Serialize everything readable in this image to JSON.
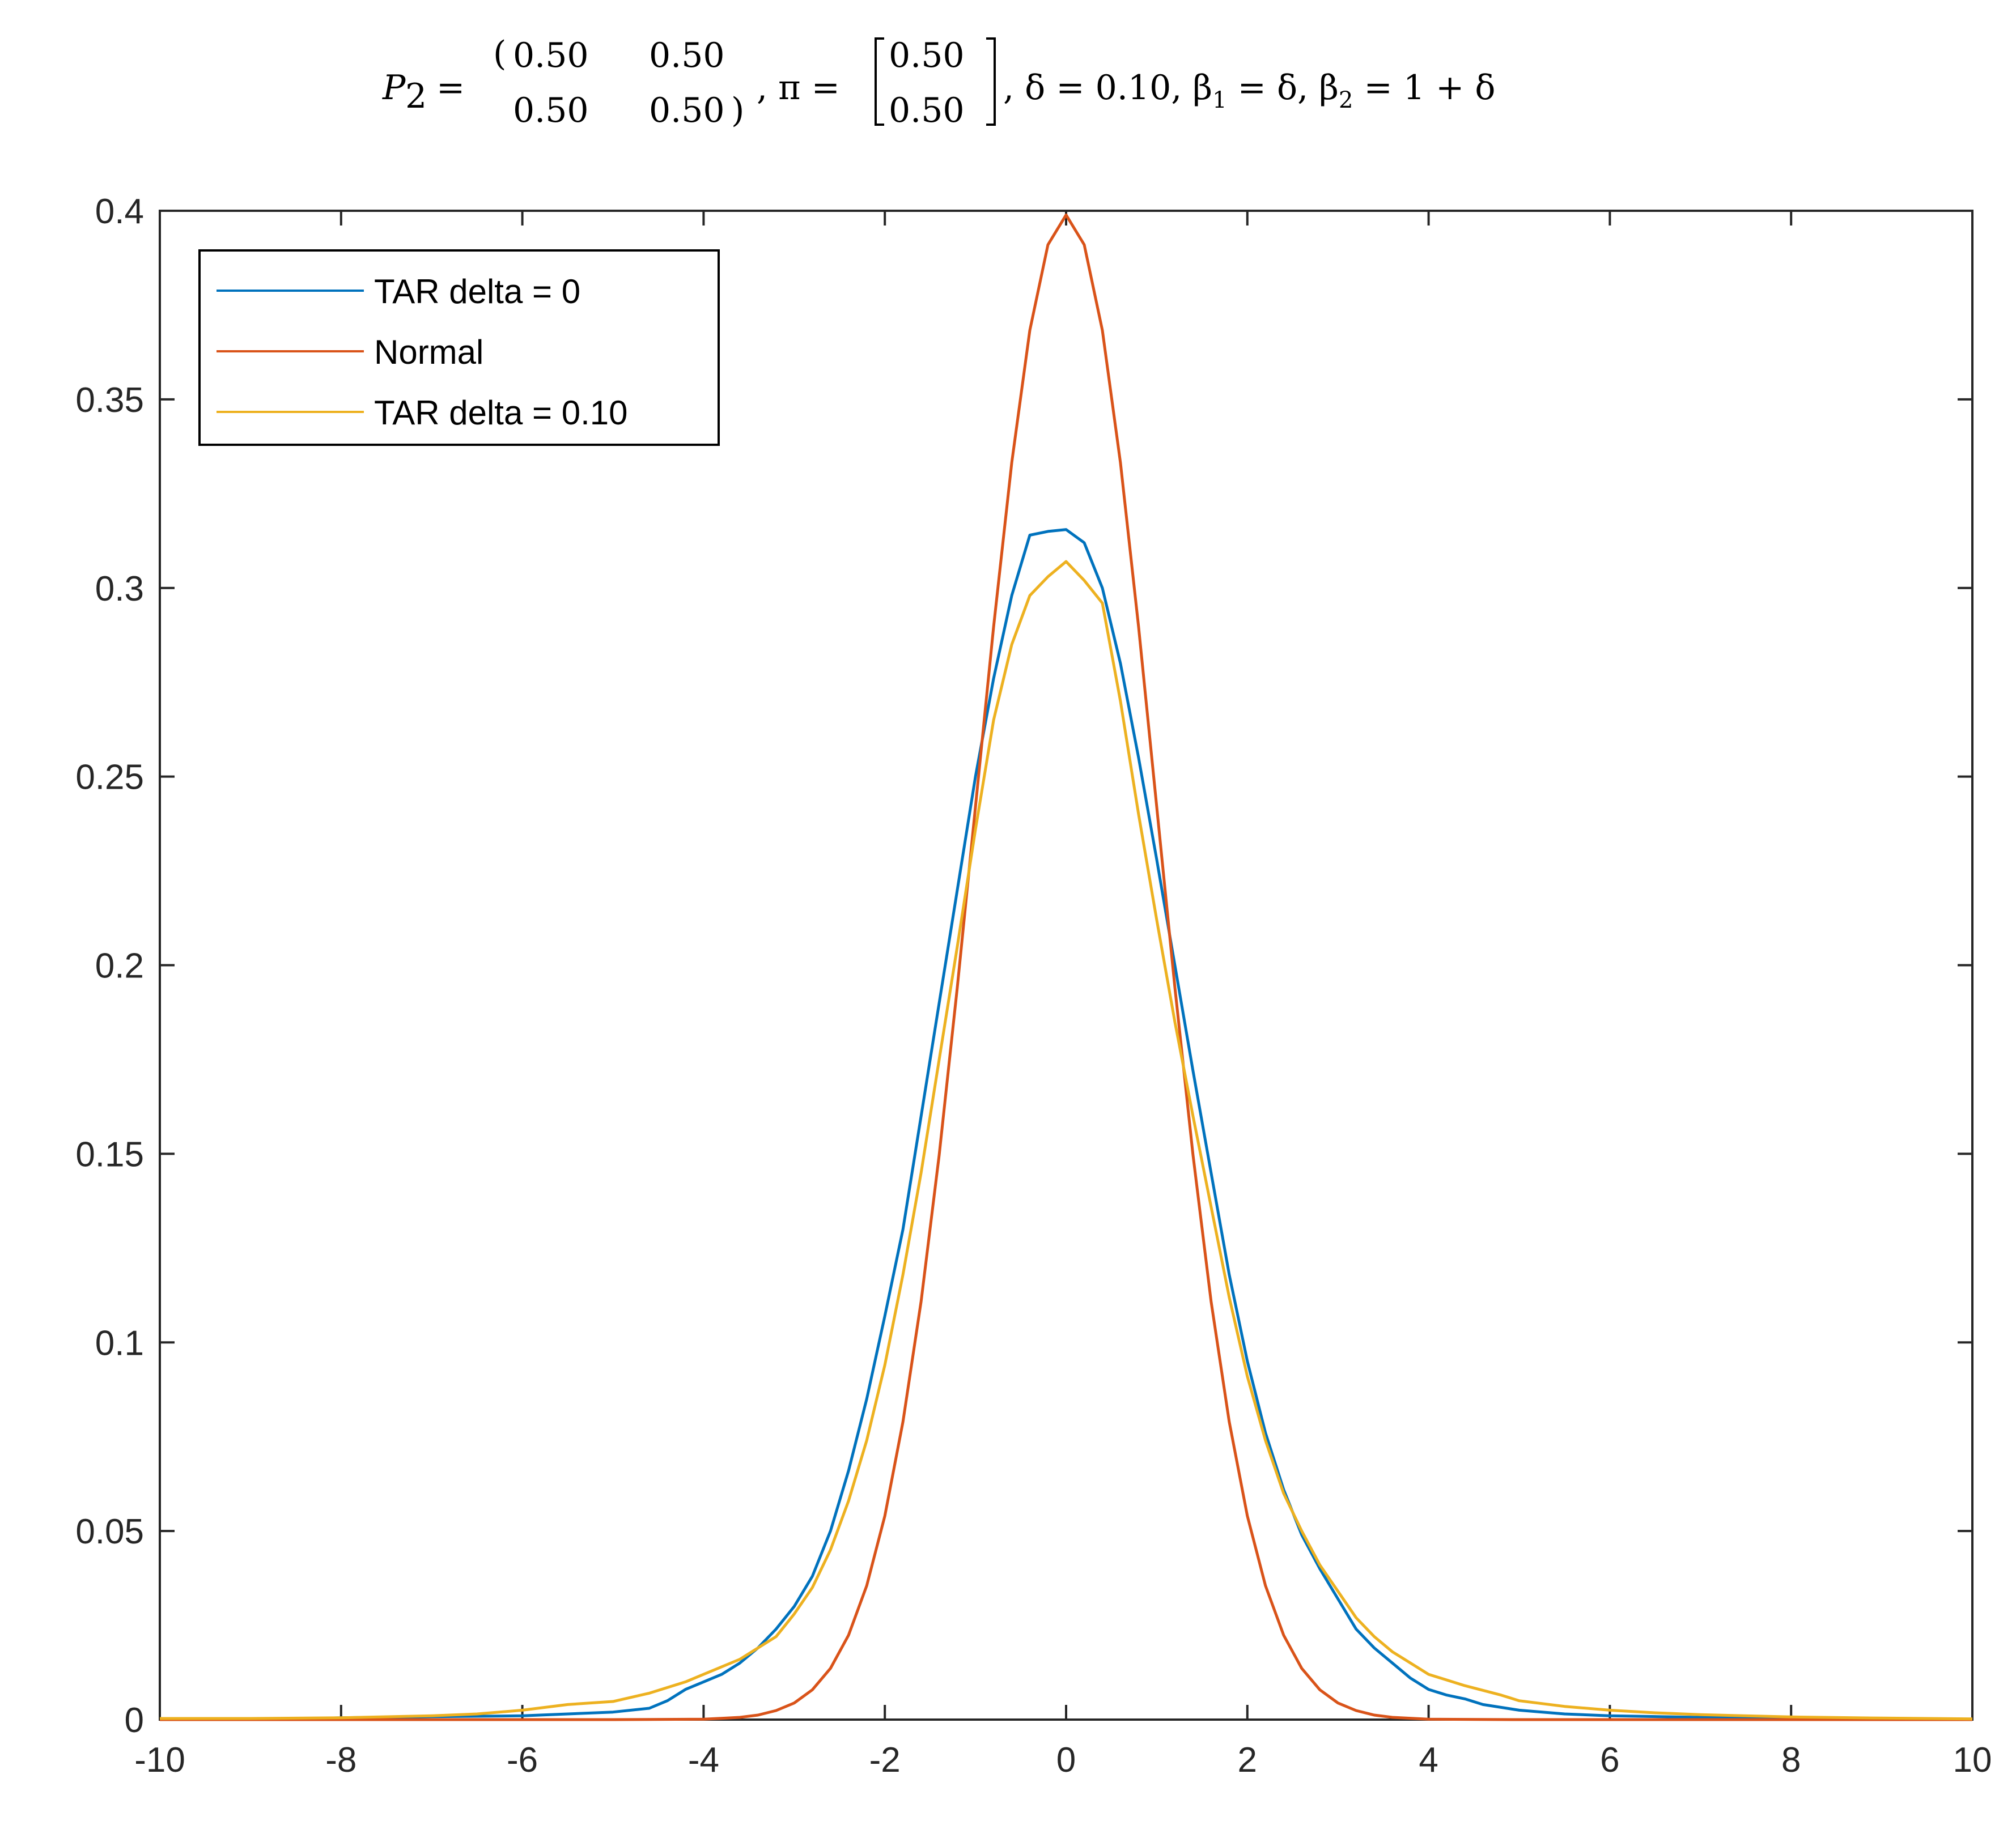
{
  "chart_data": {
    "type": "line",
    "title": "P₂ = (0.50 0.50 ; 0.50 0.50), π = [0.50 ; 0.50], δ = 0.10, β₁ = δ, β₂ = 1 + δ",
    "title_parts": {
      "p_label": "P",
      "p_sub": "2",
      "eq1": "=",
      "m11": "0.50",
      "m12": "0.50",
      "m21": "0.50",
      "m22": "0.50",
      "pi_label": ", π =",
      "v1": "0.50",
      "v2": "0.50",
      "tail1": ", δ = 0.10, β",
      "tail1_sub": "1",
      "tail2": " = δ, β",
      "tail2_sub": "2",
      "tail3": " = 1 + δ"
    },
    "xlabel": "",
    "ylabel": "",
    "xlim": [
      -10,
      10
    ],
    "ylim": [
      0,
      0.4
    ],
    "x_ticks": [
      "-10",
      "-8",
      "-6",
      "-4",
      "-2",
      "0",
      "2",
      "4",
      "6",
      "8",
      "10"
    ],
    "y_ticks": [
      "0",
      "0.05",
      "0.1",
      "0.15",
      "0.2",
      "0.25",
      "0.3",
      "0.35",
      "0.4"
    ],
    "grid": false,
    "legend_position": "top-left",
    "series": [
      {
        "name": "TAR delta = 0",
        "color": "#0072BD",
        "points": [
          [
            -10,
            0.0
          ],
          [
            -9,
            0.0
          ],
          [
            -8,
            0.0005
          ],
          [
            -7,
            0.0008
          ],
          [
            -6,
            0.001
          ],
          [
            -5.5,
            0.0015
          ],
          [
            -5,
            0.002
          ],
          [
            -4.6,
            0.003
          ],
          [
            -4.4,
            0.005
          ],
          [
            -4.2,
            0.008
          ],
          [
            -4,
            0.01
          ],
          [
            -3.8,
            0.012
          ],
          [
            -3.6,
            0.015
          ],
          [
            -3.4,
            0.019
          ],
          [
            -3.2,
            0.024
          ],
          [
            -3,
            0.03
          ],
          [
            -2.8,
            0.038
          ],
          [
            -2.6,
            0.05
          ],
          [
            -2.4,
            0.066
          ],
          [
            -2.2,
            0.085
          ],
          [
            -2,
            0.107
          ],
          [
            -1.8,
            0.13
          ],
          [
            -1.6,
            0.16
          ],
          [
            -1.4,
            0.19
          ],
          [
            -1.2,
            0.22
          ],
          [
            -1,
            0.25
          ],
          [
            -0.8,
            0.276
          ],
          [
            -0.6,
            0.298
          ],
          [
            -0.4,
            0.314
          ],
          [
            -0.2,
            0.315
          ],
          [
            0,
            0.3155
          ],
          [
            0.2,
            0.312
          ],
          [
            0.4,
            0.3
          ],
          [
            0.6,
            0.28
          ],
          [
            0.8,
            0.255
          ],
          [
            1,
            0.228
          ],
          [
            1.2,
            0.2
          ],
          [
            1.4,
            0.172
          ],
          [
            1.6,
            0.145
          ],
          [
            1.8,
            0.118
          ],
          [
            2,
            0.095
          ],
          [
            2.2,
            0.076
          ],
          [
            2.4,
            0.061
          ],
          [
            2.6,
            0.049
          ],
          [
            2.8,
            0.04
          ],
          [
            3,
            0.032
          ],
          [
            3.2,
            0.024
          ],
          [
            3.4,
            0.019
          ],
          [
            3.6,
            0.015
          ],
          [
            3.8,
            0.011
          ],
          [
            4,
            0.008
          ],
          [
            4.2,
            0.0065
          ],
          [
            4.4,
            0.0055
          ],
          [
            4.6,
            0.004
          ],
          [
            5,
            0.0025
          ],
          [
            5.5,
            0.0015
          ],
          [
            6,
            0.001
          ],
          [
            7,
            0.0006
          ],
          [
            8,
            0.0003
          ],
          [
            9,
            0.0001
          ],
          [
            10,
            0.0
          ]
        ]
      },
      {
        "name": "Normal",
        "color": "#D95319",
        "points": [
          [
            -10,
            0.0
          ],
          [
            -5,
            0.0
          ],
          [
            -4,
            0.0001
          ],
          [
            -3.6,
            0.0006
          ],
          [
            -3.4,
            0.0012
          ],
          [
            -3.2,
            0.0024
          ],
          [
            -3,
            0.0044
          ],
          [
            -2.8,
            0.0079
          ],
          [
            -2.6,
            0.0136
          ],
          [
            -2.4,
            0.0224
          ],
          [
            -2.2,
            0.0355
          ],
          [
            -2,
            0.054
          ],
          [
            -1.8,
            0.079
          ],
          [
            -1.6,
            0.1109
          ],
          [
            -1.4,
            0.1497
          ],
          [
            -1.2,
            0.1942
          ],
          [
            -1,
            0.242
          ],
          [
            -0.8,
            0.2897
          ],
          [
            -0.6,
            0.3332
          ],
          [
            -0.4,
            0.3683
          ],
          [
            -0.2,
            0.391
          ],
          [
            0,
            0.3989
          ],
          [
            0.2,
            0.391
          ],
          [
            0.4,
            0.3683
          ],
          [
            0.6,
            0.3332
          ],
          [
            0.8,
            0.2897
          ],
          [
            1,
            0.242
          ],
          [
            1.2,
            0.1942
          ],
          [
            1.4,
            0.1497
          ],
          [
            1.6,
            0.1109
          ],
          [
            1.8,
            0.079
          ],
          [
            2,
            0.054
          ],
          [
            2.2,
            0.0355
          ],
          [
            2.4,
            0.0224
          ],
          [
            2.6,
            0.0136
          ],
          [
            2.8,
            0.0079
          ],
          [
            3,
            0.0044
          ],
          [
            3.2,
            0.0024
          ],
          [
            3.4,
            0.0012
          ],
          [
            3.6,
            0.0006
          ],
          [
            4,
            0.0001
          ],
          [
            5,
            0.0
          ],
          [
            10,
            0.0
          ]
        ]
      },
      {
        "name": "TAR delta = 0.10",
        "color": "#EDB120",
        "points": [
          [
            -10,
            0.0003
          ],
          [
            -9,
            0.0003
          ],
          [
            -8,
            0.0005
          ],
          [
            -7,
            0.001
          ],
          [
            -6.5,
            0.0015
          ],
          [
            -6,
            0.0025
          ],
          [
            -5.5,
            0.004
          ],
          [
            -5,
            0.0048
          ],
          [
            -4.6,
            0.007
          ],
          [
            -4.2,
            0.01
          ],
          [
            -4,
            0.012
          ],
          [
            -3.6,
            0.016
          ],
          [
            -3.2,
            0.022
          ],
          [
            -3,
            0.028
          ],
          [
            -2.8,
            0.035
          ],
          [
            -2.6,
            0.045
          ],
          [
            -2.4,
            0.058
          ],
          [
            -2.2,
            0.074
          ],
          [
            -2,
            0.094
          ],
          [
            -1.8,
            0.118
          ],
          [
            -1.6,
            0.145
          ],
          [
            -1.4,
            0.175
          ],
          [
            -1.2,
            0.205
          ],
          [
            -1,
            0.236
          ],
          [
            -0.8,
            0.265
          ],
          [
            -0.6,
            0.285
          ],
          [
            -0.4,
            0.298
          ],
          [
            -0.2,
            0.303
          ],
          [
            0,
            0.307
          ],
          [
            0.2,
            0.302
          ],
          [
            0.4,
            0.296
          ],
          [
            0.6,
            0.27
          ],
          [
            0.8,
            0.24
          ],
          [
            1,
            0.212
          ],
          [
            1.2,
            0.185
          ],
          [
            1.4,
            0.16
          ],
          [
            1.6,
            0.136
          ],
          [
            1.8,
            0.112
          ],
          [
            2,
            0.091
          ],
          [
            2.2,
            0.074
          ],
          [
            2.4,
            0.06
          ],
          [
            2.6,
            0.05
          ],
          [
            2.8,
            0.041
          ],
          [
            3,
            0.034
          ],
          [
            3.2,
            0.027
          ],
          [
            3.4,
            0.022
          ],
          [
            3.6,
            0.018
          ],
          [
            3.8,
            0.015
          ],
          [
            4,
            0.012
          ],
          [
            4.4,
            0.009
          ],
          [
            4.8,
            0.0065
          ],
          [
            5,
            0.005
          ],
          [
            5.5,
            0.0035
          ],
          [
            6,
            0.0025
          ],
          [
            6.5,
            0.0018
          ],
          [
            7,
            0.0013
          ],
          [
            8,
            0.0007
          ],
          [
            9,
            0.0004
          ],
          [
            10,
            0.0002
          ]
        ]
      }
    ]
  }
}
